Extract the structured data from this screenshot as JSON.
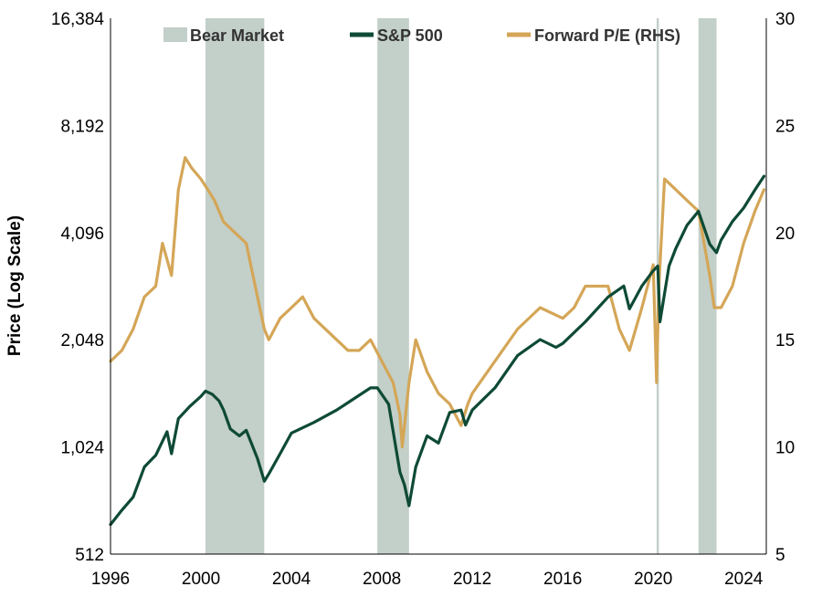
{
  "chart_data": {
    "type": "line",
    "ylabel": "Price (Log Scale)",
    "y_scale": "log2",
    "ylim": [
      512,
      16384
    ],
    "y_ticks": [
      "512",
      "1,024",
      "2,048",
      "4,096",
      "8,192",
      "16,384"
    ],
    "y_tick_values": [
      512,
      1024,
      2048,
      4096,
      8192,
      16384
    ],
    "y2lim": [
      5,
      30
    ],
    "y2_ticks": [
      "5",
      "10",
      "15",
      "20",
      "25",
      "30"
    ],
    "y2_tick_values": [
      5,
      10,
      15,
      20,
      25,
      30
    ],
    "xlim": [
      1996,
      2025
    ],
    "x_ticks": [
      "1996",
      "2000",
      "2004",
      "2008",
      "2012",
      "2016",
      "2020",
      "2024"
    ],
    "x_tick_values": [
      1996,
      2000,
      2004,
      2008,
      2012,
      2016,
      2020,
      2024
    ],
    "grid": false,
    "legend_position": "top",
    "bear_markets": [
      {
        "start": 2000.2,
        "end": 2002.8
      },
      {
        "start": 2007.8,
        "end": 2009.2
      },
      {
        "start": 2020.15,
        "end": 2020.25
      },
      {
        "start": 2022.0,
        "end": 2022.8
      }
    ],
    "series": [
      {
        "name": "Bear Market",
        "kind": "band",
        "color": "#c3cfc9"
      },
      {
        "name": "S&P 500",
        "axis": "left",
        "color": "#0e4a36",
        "x": [
          1996.0,
          1996.5,
          1997.0,
          1997.5,
          1998.0,
          1998.5,
          1998.7,
          1999.0,
          1999.5,
          2000.0,
          2000.2,
          2000.5,
          2000.8,
          2001.0,
          2001.3,
          2001.7,
          2002.0,
          2002.5,
          2002.8,
          2003.0,
          2003.5,
          2004.0,
          2005.0,
          2006.0,
          2007.0,
          2007.5,
          2007.8,
          2008.3,
          2008.8,
          2009.0,
          2009.2,
          2009.5,
          2010.0,
          2010.5,
          2011.0,
          2011.5,
          2011.7,
          2012.0,
          2013.0,
          2014.0,
          2015.0,
          2015.7,
          2016.0,
          2017.0,
          2018.0,
          2018.7,
          2018.95,
          2019.5,
          2020.0,
          2020.2,
          2020.3,
          2020.7,
          2021.0,
          2021.5,
          2022.0,
          2022.5,
          2022.8,
          2023.0,
          2023.5,
          2024.0,
          2024.5,
          2024.9
        ],
        "values": [
          620,
          680,
          740,
          900,
          970,
          1130,
          980,
          1230,
          1330,
          1420,
          1470,
          1440,
          1380,
          1300,
          1150,
          1100,
          1140,
          950,
          820,
          860,
          980,
          1120,
          1200,
          1300,
          1430,
          1500,
          1500,
          1350,
          870,
          800,
          700,
          900,
          1100,
          1050,
          1280,
          1300,
          1180,
          1300,
          1500,
          1850,
          2050,
          1950,
          2000,
          2300,
          2700,
          2900,
          2500,
          2900,
          3200,
          3300,
          2300,
          3300,
          3700,
          4300,
          4700,
          3800,
          3600,
          3900,
          4400,
          4800,
          5400,
          5900
        ]
      },
      {
        "name": "Forward P/E (RHS)",
        "axis": "right",
        "color": "#d4a657",
        "x": [
          1996.0,
          1996.5,
          1997.0,
          1997.5,
          1998.0,
          1998.3,
          1998.7,
          1999.0,
          1999.3,
          1999.6,
          2000.0,
          2000.3,
          2000.6,
          2001.0,
          2001.5,
          2002.0,
          2002.5,
          2002.8,
          2003.0,
          2003.5,
          2004.0,
          2004.5,
          2005.0,
          2006.0,
          2006.5,
          2007.0,
          2007.5,
          2008.0,
          2008.5,
          2008.8,
          2008.9,
          2009.2,
          2009.5,
          2010.0,
          2010.5,
          2011.0,
          2011.5,
          2011.8,
          2012.0,
          2013.0,
          2014.0,
          2015.0,
          2016.0,
          2016.5,
          2017.0,
          2018.0,
          2018.5,
          2018.95,
          2019.5,
          2020.0,
          2020.15,
          2020.25,
          2020.5,
          2021.0,
          2021.5,
          2022.0,
          2022.5,
          2022.7,
          2023.0,
          2023.5,
          2024.0,
          2024.5,
          2024.9
        ],
        "values": [
          14.0,
          14.5,
          15.5,
          17.0,
          17.5,
          19.5,
          18.0,
          22.0,
          23.5,
          23.0,
          22.5,
          22.0,
          21.5,
          20.5,
          20.0,
          19.5,
          17.0,
          15.5,
          15.0,
          16.0,
          16.5,
          17.0,
          16.0,
          15.0,
          14.5,
          14.5,
          15.0,
          14.0,
          13.0,
          11.5,
          10.0,
          13.0,
          15.0,
          13.5,
          12.5,
          12.0,
          11.0,
          12.0,
          12.5,
          14.0,
          15.5,
          16.5,
          16.0,
          16.5,
          17.5,
          17.5,
          15.5,
          14.5,
          16.5,
          18.5,
          13.0,
          17.5,
          22.5,
          22.0,
          21.5,
          21.0,
          18.0,
          16.5,
          16.5,
          17.5,
          19.5,
          21.0,
          22.0
        ]
      }
    ]
  }
}
